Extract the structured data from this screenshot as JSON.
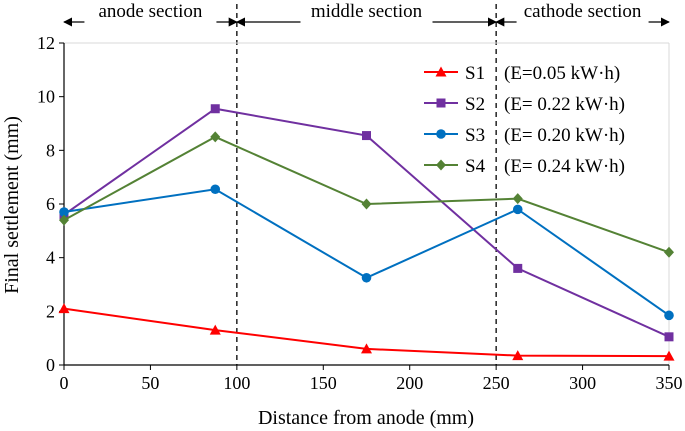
{
  "chart_data": {
    "type": "line",
    "title": "",
    "xlabel": "Distance from anode (mm)",
    "ylabel": "Final settlement (mm)",
    "xlim": [
      0,
      350
    ],
    "ylim": [
      0,
      12
    ],
    "xticks": [
      0,
      50,
      100,
      150,
      200,
      250,
      300,
      350
    ],
    "yticks": [
      0,
      2,
      4,
      6,
      8,
      10,
      12
    ],
    "x": [
      0,
      87.5,
      175,
      262.5,
      350
    ],
    "series": [
      {
        "name": "S1",
        "energy": "(E=0.05 kW·h)",
        "color": "#ff0000",
        "marker": "triangle",
        "values": [
          2.1,
          1.3,
          0.6,
          0.35,
          0.33
        ]
      },
      {
        "name": "S2",
        "energy": "(E= 0.22 kW·h)",
        "color": "#7030a0",
        "marker": "square",
        "values": [
          5.6,
          9.55,
          8.55,
          3.6,
          1.05
        ]
      },
      {
        "name": "S3",
        "energy": "(E= 0.20 kW·h)",
        "color": "#0070c0",
        "marker": "circle",
        "values": [
          5.7,
          6.55,
          3.25,
          5.8,
          1.85
        ]
      },
      {
        "name": "S4",
        "energy": "(E= 0.24 kW·h)",
        "color": "#548235",
        "marker": "diamond",
        "values": [
          5.4,
          8.5,
          6.0,
          6.2,
          4.2
        ]
      }
    ],
    "dividers": [
      100,
      250
    ],
    "sections": [
      {
        "label": "anode section",
        "from": 0,
        "to": 100
      },
      {
        "label": "middle section",
        "from": 100,
        "to": 250
      },
      {
        "label": "cathode section",
        "from": 250,
        "to": 350
      }
    ],
    "legend_position": "top-right",
    "grid": false
  }
}
